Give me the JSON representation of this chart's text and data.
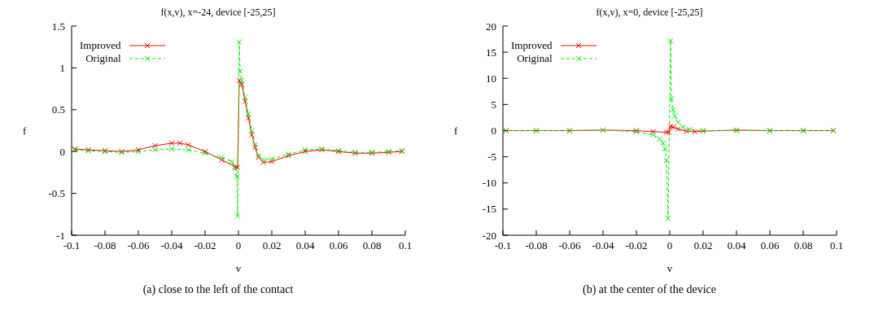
{
  "chart_data": [
    {
      "type": "line",
      "title": "f(x,v), x=-24, device [-25,25]",
      "xlabel": "v",
      "ylabel": "f",
      "annotations": [
        "(a) close to the left of the contact"
      ],
      "xlim": [
        -0.1,
        0.1
      ],
      "xticks": [
        -0.1,
        -0.08,
        -0.06,
        -0.04,
        -0.02,
        0,
        0.02,
        0.04,
        0.06,
        0.08,
        0.1
      ],
      "ylim": [
        -1,
        1.5
      ],
      "yticks": [
        -1,
        -0.5,
        0,
        0.5,
        1,
        1.5
      ],
      "legend": "top left",
      "marker": "cross",
      "series": [
        {
          "name": "Improved",
          "color": "#ff0000",
          "line_style": "solid",
          "x": [
            -0.098,
            -0.09,
            -0.08,
            -0.07,
            -0.06,
            -0.05,
            -0.04,
            -0.035,
            -0.03,
            -0.02,
            -0.01,
            -0.002,
            -0.0005,
            0.0005,
            0.002,
            0.004,
            0.006,
            0.008,
            0.01,
            0.012,
            0.015,
            0.02,
            0.03,
            0.04,
            0.05,
            0.06,
            0.07,
            0.08,
            0.09,
            0.098
          ],
          "values": [
            0.03,
            0.02,
            0.01,
            0,
            0.02,
            0.07,
            0.1,
            0.1,
            0.08,
            0,
            -0.1,
            -0.18,
            -0.19,
            0.85,
            0.8,
            0.6,
            0.4,
            0.2,
            0.05,
            -0.07,
            -0.13,
            -0.12,
            -0.05,
            0,
            0.02,
            0,
            -0.02,
            -0.02,
            -0.01,
            0
          ]
        },
        {
          "name": "Original",
          "color": "#00ee00",
          "line_style": "dashed",
          "x": [
            -0.098,
            -0.09,
            -0.08,
            -0.07,
            -0.06,
            -0.05,
            -0.04,
            -0.03,
            -0.02,
            -0.01,
            -0.004,
            -0.002,
            -0.001,
            -0.0005,
            0.0005,
            0.001,
            0.002,
            0.004,
            0.006,
            0.008,
            0.01,
            0.012,
            0.015,
            0.02,
            0.03,
            0.04,
            0.05,
            0.06,
            0.07,
            0.08,
            0.09,
            0.098
          ],
          "values": [
            0.02,
            0.01,
            0,
            -0.01,
            0,
            0.02,
            0.03,
            0.02,
            -0.02,
            -0.07,
            -0.12,
            -0.2,
            -0.3,
            -0.77,
            1.31,
            0.96,
            0.85,
            0.65,
            0.45,
            0.25,
            0.08,
            -0.05,
            -0.1,
            -0.09,
            -0.03,
            0.02,
            0.03,
            0.01,
            -0.01,
            -0.01,
            0,
            0.01
          ]
        }
      ]
    },
    {
      "type": "line",
      "title": "f(x,v), x=0, device [-25,25]",
      "xlabel": "v",
      "ylabel": "f",
      "annotations": [
        "(b) at the center of the device"
      ],
      "xlim": [
        -0.1,
        0.1
      ],
      "xticks": [
        -0.1,
        -0.08,
        -0.06,
        -0.04,
        -0.02,
        0,
        0.02,
        0.04,
        0.06,
        0.08,
        0.1
      ],
      "ylim": [
        -20,
        20
      ],
      "yticks": [
        -20,
        -15,
        -10,
        -5,
        0,
        5,
        10,
        15,
        20
      ],
      "legend": "top left",
      "marker": "cross",
      "series": [
        {
          "name": "Improved",
          "color": "#ff0000",
          "line_style": "solid",
          "x": [
            -0.098,
            -0.08,
            -0.06,
            -0.04,
            -0.02,
            -0.01,
            -0.002,
            -0.0005,
            0.0005,
            0.002,
            0.005,
            0.01,
            0.015,
            0.02,
            0.04,
            0.06,
            0.08,
            0.098
          ],
          "values": [
            0,
            0,
            0,
            0.1,
            0,
            -0.2,
            -0.3,
            -0.3,
            0.8,
            0.7,
            0.3,
            -0.1,
            -0.2,
            -0.1,
            0.1,
            0,
            0,
            0
          ]
        },
        {
          "name": "Original",
          "color": "#00ee00",
          "line_style": "dashed",
          "x": [
            -0.098,
            -0.08,
            -0.06,
            -0.04,
            -0.02,
            -0.01,
            -0.006,
            -0.004,
            -0.003,
            -0.002,
            -0.001,
            0.0005,
            0.001,
            0.002,
            0.003,
            0.005,
            0.008,
            0.012,
            0.02,
            0.04,
            0.06,
            0.08,
            0.098
          ],
          "values": [
            0,
            0,
            0,
            0.1,
            -0.2,
            -0.8,
            -1.6,
            -2.4,
            -3.5,
            -5.7,
            -16.8,
            17.2,
            6.1,
            4,
            2.8,
            1.6,
            0.7,
            0.2,
            0,
            0,
            0,
            0,
            0
          ]
        }
      ]
    }
  ]
}
